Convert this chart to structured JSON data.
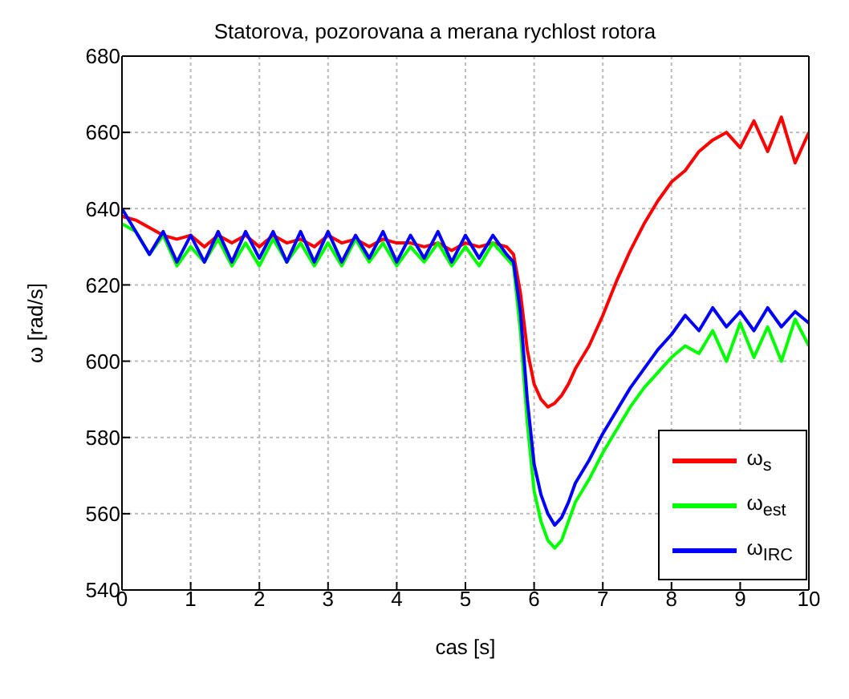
{
  "chart_data": {
    "type": "line",
    "title": "Statorova, pozorovana a merana rychlost rotora",
    "xlabel": "cas [s]",
    "ylabel": "ω [rad/s]",
    "x": [
      0,
      0.2,
      0.4,
      0.6,
      0.8,
      1,
      1.2,
      1.4,
      1.6,
      1.8,
      2,
      2.2,
      2.4,
      2.6,
      2.8,
      3,
      3.2,
      3.4,
      3.6,
      3.8,
      4,
      4.2,
      4.4,
      4.6,
      4.8,
      5,
      5.2,
      5.4,
      5.6,
      5.7,
      5.8,
      5.9,
      6,
      6.1,
      6.2,
      6.3,
      6.4,
      6.5,
      6.6,
      6.8,
      7,
      7.2,
      7.4,
      7.6,
      7.8,
      8,
      8.2,
      8.4,
      8.6,
      8.8,
      9,
      9.2,
      9.4,
      9.6,
      9.8,
      10
    ],
    "series": [
      {
        "name": "ω$_{s}$",
        "color": "#ff0000",
        "values": [
          638,
          637,
          635,
          633,
          632,
          633,
          630,
          633,
          631,
          633,
          630,
          633,
          631,
          632,
          630,
          633,
          631,
          632,
          630,
          632,
          631,
          631,
          630,
          631,
          629,
          631,
          630,
          631,
          630,
          628,
          618,
          603,
          594,
          590,
          588,
          589,
          591,
          594,
          598,
          604,
          612,
          621,
          629,
          636,
          642,
          647,
          650,
          655,
          658,
          660,
          656,
          663,
          655,
          664,
          652,
          660
        ]
      },
      {
        "name": "ω$_{est}$",
        "color": "#00ff00",
        "values": [
          636,
          634,
          628,
          633,
          625,
          630,
          626,
          632,
          625,
          631,
          625,
          632,
          626,
          631,
          625,
          631,
          625,
          632,
          626,
          631,
          625,
          630,
          626,
          631,
          625,
          630,
          625,
          631,
          627,
          625,
          608,
          584,
          566,
          558,
          553,
          551,
          553,
          558,
          563,
          569,
          576,
          582,
          588,
          593,
          597,
          601,
          604,
          602,
          608,
          600,
          610,
          601,
          609,
          600,
          611,
          604
        ]
      },
      {
        "name": "ω$_{IRC}$",
        "color": "#0000ff",
        "values": [
          640,
          634,
          628,
          634,
          626,
          633,
          626,
          634,
          626,
          634,
          627,
          634,
          626,
          634,
          626,
          634,
          626,
          633,
          627,
          634,
          626,
          633,
          627,
          634,
          626,
          633,
          627,
          633,
          628,
          626,
          613,
          590,
          573,
          565,
          560,
          557,
          559,
          563,
          568,
          574,
          581,
          587,
          593,
          598,
          603,
          607,
          612,
          608,
          614,
          609,
          613,
          608,
          614,
          609,
          613,
          610
        ]
      }
    ],
    "xlim": [
      0,
      10
    ],
    "xticks": [
      0,
      1,
      2,
      3,
      4,
      5,
      6,
      7,
      8,
      9,
      10
    ],
    "ylim": [
      540,
      680
    ],
    "yticks": [
      540,
      560,
      580,
      600,
      620,
      640,
      660,
      680
    ],
    "grid": true,
    "legend": "bottom right",
    "marker": "none",
    "line_style": "solid"
  }
}
